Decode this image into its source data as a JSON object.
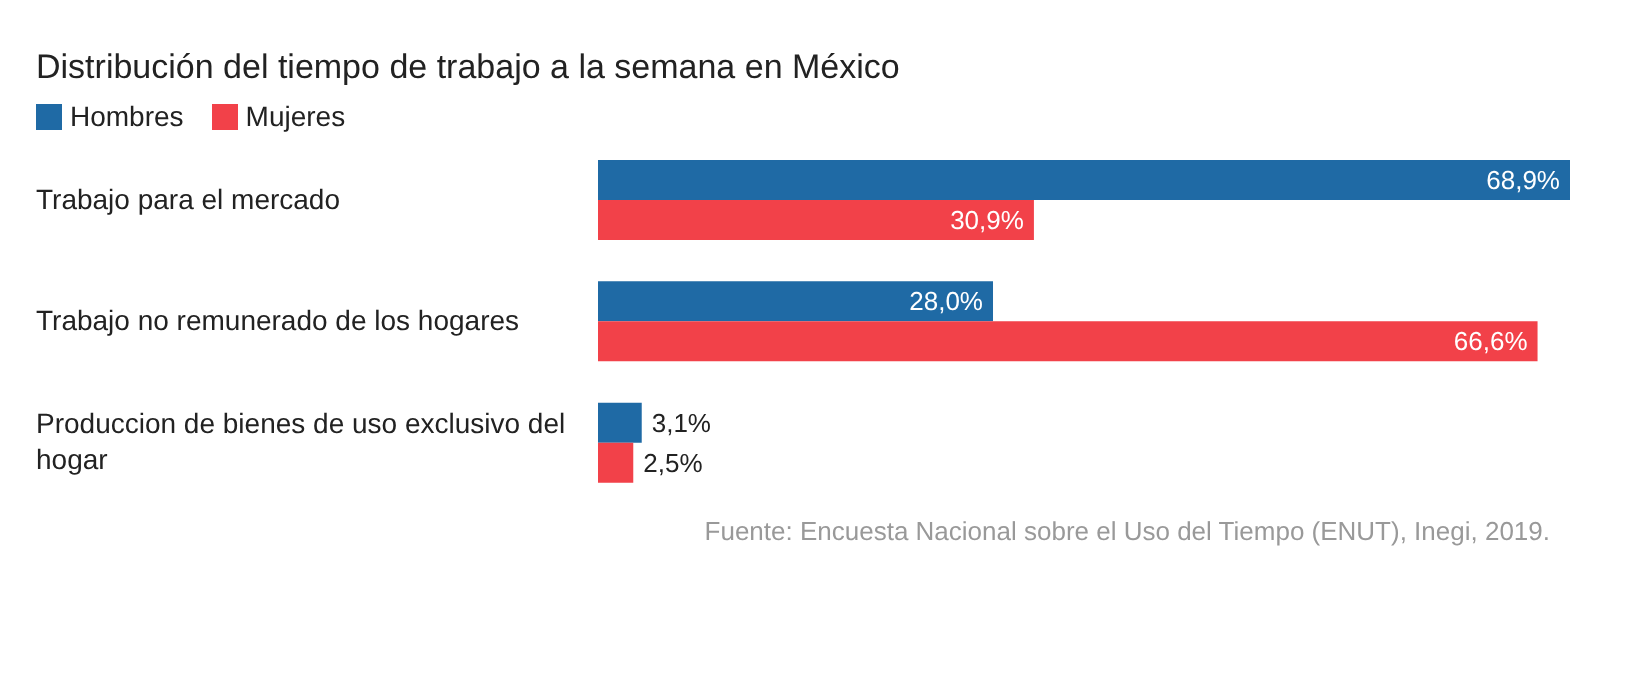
{
  "chart_data": {
    "type": "bar",
    "orientation": "horizontal",
    "title": "Distribución del tiempo de trabajo a la semana en México",
    "categories": [
      "Trabajo para el mercado",
      "Trabajo no remunerado de los hogares",
      "Produccion de bienes de uso exclusivo del hogar"
    ],
    "series": [
      {
        "name": "Hombres",
        "color": "#1f6aa5",
        "values": [
          68.9,
          28.0,
          3.1
        ],
        "value_labels": [
          "68,9%",
          "28,0%",
          "3,1%"
        ]
      },
      {
        "name": "Mujeres",
        "color": "#f24149",
        "values": [
          30.9,
          66.6,
          2.5
        ],
        "value_labels": [
          "30,9%",
          "66,6%",
          "2,5%"
        ]
      }
    ],
    "legend": "top left",
    "grid": false,
    "annotations": [
      "Fuente: Encuesta Nacional sobre el Uso del Tiempo (ENUT), Inegi, 2019."
    ]
  }
}
